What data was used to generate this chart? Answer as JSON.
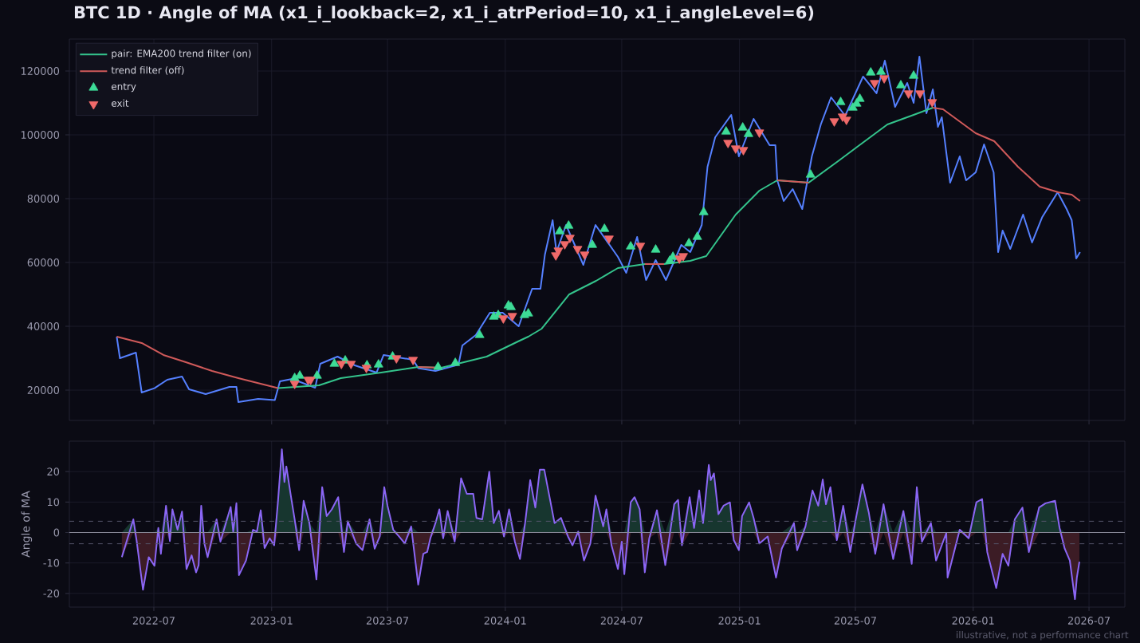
{
  "chart_data": [
    {
      "type": "line",
      "title": "BTC  1D    ·    Angle of MA  (x1_i_lookback=2, x1_i_atrPeriod=10, x1_i_angleLevel=6)",
      "xlim": [
        "2022-02-19",
        "2026-08-26"
      ],
      "ylim": [
        10500,
        130000
      ],
      "xticks": [
        "2022-07",
        "2023-01",
        "2023-07",
        "2024-01",
        "2024-07",
        "2025-01",
        "2025-07",
        "2026-01",
        "2026-07"
      ],
      "yticks": [
        20000,
        40000,
        60000,
        80000,
        100000,
        120000
      ],
      "tick_labels": "y",
      "grid": true,
      "legend": "top left",
      "x": [
        "2022-05-04",
        "2022-05-09",
        "2022-06-03",
        "2022-06-12",
        "2022-07-02",
        "2022-07-22",
        "2022-08-14",
        "2022-08-25",
        "2022-09-20",
        "2022-10-27",
        "2022-11-07",
        "2022-11-10",
        "2022-12-11",
        "2023-01-06",
        "2023-01-14",
        "2023-02-02",
        "2023-03-10",
        "2023-03-18",
        "2023-04-14",
        "2023-05-11",
        "2023-06-14",
        "2023-06-25",
        "2023-08-10",
        "2023-08-18",
        "2023-09-14",
        "2023-10-20",
        "2023-10-26",
        "2023-11-16",
        "2023-12-08",
        "2023-12-28",
        "2024-01-22",
        "2024-02-12",
        "2024-02-25",
        "2024-03-03",
        "2024-03-15",
        "2024-03-21",
        "2024-04-05",
        "2024-05-02",
        "2024-05-21",
        "2024-06-25",
        "2024-07-08",
        "2024-07-25",
        "2024-08-08",
        "2024-08-23",
        "2024-09-08",
        "2024-10-02",
        "2024-10-16",
        "2024-11-03",
        "2024-11-12",
        "2024-11-24",
        "2024-12-19",
        "2024-12-31",
        "2025-01-23",
        "2025-02-17",
        "2025-02-26",
        "2025-03-01",
        "2025-03-11",
        "2025-03-25",
        "2025-04-09",
        "2025-04-24",
        "2025-05-08",
        "2025-05-24",
        "2025-06-15",
        "2025-07-13",
        "2025-08-03",
        "2025-08-16",
        "2025-09-01",
        "2025-09-20",
        "2025-09-30",
        "2025-10-09",
        "2025-10-20",
        "2025-10-30",
        "2025-11-07",
        "2025-11-13",
        "2025-11-26",
        "2025-12-11",
        "2025-12-21",
        "2026-01-05",
        "2026-01-18",
        "2026-02-02",
        "2026-02-09",
        "2026-02-16",
        "2026-02-28",
        "2026-03-20",
        "2026-04-03",
        "2026-04-19",
        "2026-05-13",
        "2026-05-27",
        "2026-06-04",
        "2026-06-11",
        "2026-06-17"
      ],
      "series": [
        {
          "color": "#5580ff",
          "values": [
            36750,
            30000,
            31750,
            19250,
            20600,
            23250,
            24250,
            20250,
            18750,
            21000,
            21000,
            16250,
            17250,
            16900,
            22750,
            23500,
            20750,
            28250,
            30500,
            27750,
            25500,
            31000,
            29500,
            26900,
            26000,
            28000,
            34000,
            37250,
            44250,
            44250,
            40000,
            51750,
            51750,
            62500,
            73250,
            63250,
            71750,
            59250,
            71750,
            61750,
            56750,
            68000,
            54500,
            60750,
            54500,
            65500,
            63250,
            71750,
            90000,
            99250,
            106250,
            93250,
            105000,
            96750,
            96750,
            85750,
            79250,
            83000,
            76750,
            93250,
            103250,
            111750,
            106000,
            118250,
            113000,
            123250,
            108750,
            116250,
            110000,
            124500,
            106750,
            114250,
            102500,
            105500,
            85000,
            93250,
            85750,
            88250,
            97000,
            88250,
            63250,
            70000,
            64250,
            75000,
            66250,
            74250,
            82000,
            76750,
            73250,
            61250,
            63250
          ]
        },
        {
          "name": "pair: EMA200 trend filter (on)",
          "color": "#34c48c",
          "x": [
            "2023-01-11",
            "2023-03-16",
            "2023-04-19",
            "2023-06-21",
            "2023-08-18",
            "2023-09-23",
            "2023-12-03",
            "2024-01-21",
            "2024-02-06",
            "2024-02-27",
            "2024-04-10",
            "2024-05-22",
            "2024-06-25",
            "2024-08-06",
            "2024-09-05",
            "2024-10-16",
            "2024-11-10",
            "2024-12-26",
            "2025-02-01",
            "2025-03-01",
            "2025-04-19",
            "2025-06-04",
            "2025-07-04",
            "2025-08-20",
            "2025-09-30",
            "2025-10-30"
          ],
          "values": [
            20600,
            21500,
            23750,
            25500,
            27250,
            27000,
            30500,
            35250,
            36750,
            39250,
            50000,
            54250,
            58250,
            59500,
            59500,
            60500,
            62000,
            75000,
            82500,
            85750,
            85000,
            91750,
            96250,
            103250,
            106250,
            108500
          ]
        },
        {
          "name": "trend filter (off)",
          "color": "#d05a5a",
          "x": [
            "2022-05-04",
            "2022-06-12",
            "2022-07-16",
            "2022-08-20",
            "2022-09-30",
            "2022-11-10",
            "2023-01-11",
            "2023-03-16",
            "2023-08-18",
            "2023-09-23",
            "2023-12-03",
            "2024-08-06",
            "2024-09-05",
            "2024-10-16",
            "2025-03-01",
            "2025-04-19",
            "2025-06-04",
            "2025-10-30",
            "2025-11-15",
            "2026-01-05",
            "2026-02-03",
            "2026-03-12",
            "2026-04-15",
            "2026-05-14",
            "2026-06-04",
            "2026-06-17"
          ],
          "values": [
            36750,
            34750,
            31000,
            28750,
            26000,
            23750,
            20600,
            null,
            27250,
            27000,
            null,
            59500,
            59500,
            null,
            85750,
            85000,
            null,
            108500,
            108000,
            100500,
            98000,
            90000,
            83750,
            82000,
            81250,
            79250
          ]
        },
        {
          "type": "scatter",
          "name": "entry",
          "color": "#3ddc97",
          "marker": "triangle",
          "x": [
            "2023-02-06",
            "2023-02-14",
            "2023-03-13",
            "2023-04-09",
            "2023-04-26",
            "2023-05-30",
            "2023-06-17",
            "2023-07-09",
            "2023-09-18",
            "2023-10-15",
            "2023-11-22",
            "2023-12-14",
            "2023-12-21",
            "2024-01-06",
            "2024-01-10",
            "2024-01-31",
            "2024-02-06",
            "2024-03-26",
            "2024-04-09",
            "2024-05-16",
            "2024-06-04",
            "2024-07-15",
            "2024-08-23",
            "2024-09-14",
            "2024-09-19",
            "2024-10-14",
            "2024-10-27",
            "2024-11-06",
            "2024-12-11",
            "2025-01-06",
            "2025-01-15",
            "2025-04-22",
            "2025-06-08",
            "2025-06-27",
            "2025-07-03",
            "2025-07-08",
            "2025-07-25",
            "2025-08-10",
            "2025-09-10",
            "2025-09-30"
          ],
          "values": [
            23750,
            24500,
            24500,
            28250,
            29250,
            27750,
            28000,
            30500,
            27250,
            28500,
            37250,
            43000,
            43500,
            46500,
            46000,
            43500,
            44000,
            69750,
            71500,
            65500,
            70500,
            65000,
            64000,
            60500,
            61750,
            66000,
            68000,
            75750,
            101000,
            102250,
            100250,
            87500,
            110250,
            108500,
            109750,
            111250,
            119500,
            119750,
            115500,
            118500
          ]
        },
        {
          "type": "scatter",
          "name": "exit",
          "color": "#f06a6a",
          "marker": "triangle-down",
          "x": [
            "2023-02-06",
            "2023-02-27",
            "2023-03-03",
            "2023-04-20",
            "2023-05-05",
            "2023-05-29",
            "2023-07-15",
            "2023-08-10",
            "2023-12-29",
            "2024-01-12",
            "2024-03-20",
            "2024-03-24",
            "2024-04-03",
            "2024-04-11",
            "2024-04-23",
            "2024-05-04",
            "2024-06-11",
            "2024-07-30",
            "2024-09-29",
            "2024-10-05",
            "2024-12-14",
            "2024-12-26",
            "2025-01-07",
            "2025-02-01",
            "2025-05-29",
            "2025-06-11",
            "2025-06-17",
            "2025-07-31",
            "2025-08-15",
            "2025-09-22",
            "2025-10-10",
            "2025-10-29"
          ],
          "values": [
            22000,
            23250,
            23250,
            28250,
            28250,
            27000,
            30000,
            29500,
            42500,
            43250,
            62250,
            63750,
            65750,
            67750,
            64250,
            62500,
            67500,
            65250,
            61250,
            62000,
            97500,
            95750,
            95250,
            100750,
            104250,
            105750,
            104750,
            116250,
            117750,
            113000,
            113000,
            110250
          ]
        }
      ]
    },
    {
      "type": "line",
      "ylabel": "Angle of MA",
      "xlim": [
        "2022-02-19",
        "2026-08-26"
      ],
      "ylim": [
        -24.5,
        30
      ],
      "xticks": [
        "2022-07",
        "2023-01",
        "2023-07",
        "2024-01",
        "2024-07",
        "2025-01",
        "2025-07",
        "2026-01",
        "2026-07"
      ],
      "yticks": [
        -20,
        -10,
        0,
        10,
        20
      ],
      "grid": true,
      "ref_lines": [
        {
          "axis": "y",
          "value": 0,
          "color": "#8a8a9a",
          "line_style": "solid"
        },
        {
          "axis": "y",
          "value": 3.7,
          "color": "#55556a",
          "line_style": "dashed"
        },
        {
          "axis": "y",
          "value": -3.7,
          "color": "#55556a",
          "line_style": "dashed"
        }
      ],
      "annotations": [
        "illustrative, not a performance chart"
      ],
      "x": [
        "2022-05-12",
        "2022-05-30",
        "2022-06-04",
        "2022-06-14",
        "2022-06-23",
        "2022-07-02",
        "2022-07-08",
        "2022-07-12",
        "2022-07-20",
        "2022-07-26",
        "2022-07-30",
        "2022-08-07",
        "2022-08-14",
        "2022-08-21",
        "2022-08-29",
        "2022-09-05",
        "2022-09-09",
        "2022-09-13",
        "2022-09-18",
        "2022-09-23",
        "2022-10-07",
        "2022-10-13",
        "2022-10-29",
        "2022-11-02",
        "2022-11-07",
        "2022-11-11",
        "2022-11-22",
        "2022-12-03",
        "2022-12-09",
        "2022-12-15",
        "2022-12-21",
        "2022-12-29",
        "2023-01-05",
        "2023-01-11",
        "2023-01-17",
        "2023-01-21",
        "2023-01-24",
        "2023-01-31",
        "2023-02-06",
        "2023-02-13",
        "2023-02-20",
        "2023-03-01",
        "2023-03-12",
        "2023-03-21",
        "2023-03-28",
        "2023-04-05",
        "2023-04-15",
        "2023-04-24",
        "2023-04-30",
        "2023-05-13",
        "2023-05-23",
        "2023-06-03",
        "2023-06-11",
        "2023-06-19",
        "2023-06-26",
        "2023-07-01",
        "2023-07-10",
        "2023-07-19",
        "2023-07-28",
        "2023-08-07",
        "2023-08-18",
        "2023-08-26",
        "2023-09-01",
        "2023-09-06",
        "2023-09-14",
        "2023-09-20",
        "2023-09-26",
        "2023-10-03",
        "2023-10-14",
        "2023-10-24",
        "2023-11-02",
        "2023-11-12",
        "2023-11-17",
        "2023-11-26",
        "2023-12-07",
        "2023-12-14",
        "2023-12-22",
        "2023-12-30",
        "2024-01-07",
        "2024-01-16",
        "2024-01-24",
        "2024-02-01",
        "2024-02-09",
        "2024-02-17",
        "2024-02-24",
        "2024-03-02",
        "2024-03-18",
        "2024-03-28",
        "2024-04-08",
        "2024-04-15",
        "2024-04-24",
        "2024-05-03",
        "2024-05-13",
        "2024-05-21",
        "2024-06-02",
        "2024-06-07",
        "2024-06-15",
        "2024-06-25",
        "2024-07-01",
        "2024-07-05",
        "2024-07-15",
        "2024-07-21",
        "2024-07-29",
        "2024-08-06",
        "2024-08-13",
        "2024-08-25",
        "2024-09-07",
        "2024-09-21",
        "2024-09-27",
        "2024-10-03",
        "2024-10-15",
        "2024-10-22",
        "2024-10-30",
        "2024-11-05",
        "2024-11-14",
        "2024-11-17",
        "2024-11-22",
        "2024-11-29",
        "2024-12-07",
        "2024-12-17",
        "2024-12-23",
        "2024-12-31",
        "2025-01-05",
        "2025-01-16",
        "2025-01-23",
        "2025-02-01",
        "2025-02-14",
        "2025-02-27",
        "2025-03-08",
        "2025-03-27",
        "2025-04-01",
        "2025-04-14",
        "2025-04-25",
        "2025-05-04",
        "2025-05-11",
        "2025-05-16",
        "2025-05-23",
        "2025-06-02",
        "2025-06-12",
        "2025-06-23",
        "2025-07-01",
        "2025-07-12",
        "2025-07-22",
        "2025-08-01",
        "2025-08-14",
        "2025-08-29",
        "2025-09-14",
        "2025-09-27",
        "2025-10-05",
        "2025-10-13",
        "2025-10-27",
        "2025-11-04",
        "2025-11-20",
        "2025-11-22",
        "2025-12-11",
        "2025-12-25",
        "2026-01-06",
        "2026-01-15",
        "2026-01-23",
        "2026-02-06",
        "2026-02-16",
        "2026-02-25",
        "2026-03-07",
        "2026-03-19",
        "2026-03-29",
        "2026-04-14",
        "2026-04-24",
        "2026-05-09",
        "2026-05-16",
        "2026-05-24",
        "2026-06-01",
        "2026-06-09",
        "2026-06-12",
        "2026-06-16"
      ],
      "series": [
        {
          "type": "area",
          "color": "#17362f",
          "values": [
            0,
            4.3,
            0,
            0,
            0,
            0,
            1.5,
            0,
            8.8,
            0,
            7.6,
            0.9,
            6.9,
            0,
            0,
            0,
            0,
            8.8,
            0,
            0,
            4.3,
            0,
            8.4,
            0.3,
            9.6,
            0,
            0,
            0.9,
            0.3,
            7.3,
            0,
            0,
            0,
            10.4,
            27.3,
            16.6,
            21.7,
            12.1,
            4.3,
            0,
            10.4,
            3.1,
            0,
            14.9,
            5.4,
            7.6,
            11.6,
            0,
            3.7,
            0,
            0,
            4.3,
            0,
            0,
            14.9,
            8.8,
            0.9,
            0,
            0,
            2,
            0,
            0,
            0,
            0,
            3.1,
            7.6,
            0,
            7.1,
            0,
            17.8,
            12.7,
            12.7,
            4.8,
            4.3,
            20,
            3.1,
            7.1,
            0,
            7.6,
            0,
            0,
            3.1,
            17.2,
            8.2,
            20.6,
            20.6,
            3.1,
            4.8,
            0,
            0,
            0.3,
            0,
            0,
            12.1,
            2,
            7.6,
            0,
            0,
            0,
            0,
            9.9,
            11.6,
            7.6,
            0,
            0,
            7.3,
            0,
            9.3,
            10.7,
            0,
            11.6,
            1.5,
            13.8,
            3.1,
            22.2,
            17.2,
            19.4,
            6,
            8.8,
            9.9,
            0,
            0,
            5.4,
            9.9,
            4.8,
            0,
            0,
            0,
            0,
            3.1,
            0,
            2,
            13.8,
            8.8,
            17.4,
            9.3,
            14.9,
            0,
            8.8,
            0,
            3.7,
            15.8,
            6.5,
            0,
            9.3,
            0,
            7.1,
            0,
            14.9,
            0,
            3.1,
            0,
            0,
            0,
            0.9,
            0,
            9.9,
            11,
            0,
            0,
            0,
            0,
            4.3,
            8.2,
            0,
            8.2,
            9.6,
            10.4,
            1.5,
            0,
            0,
            0,
            0,
            0
          ]
        },
        {
          "type": "area",
          "color": "#3c1c25",
          "values": [
            -8.1,
            0,
            -2.5,
            -18.8,
            -8.1,
            -10.9,
            0,
            -7,
            0,
            -2.8,
            0,
            0,
            0,
            -12,
            -7.5,
            -13.1,
            -10.7,
            0,
            -3.6,
            -8.1,
            0,
            -3,
            0,
            0,
            0,
            -14,
            -9.2,
            0,
            0,
            0,
            -5.1,
            -1.9,
            -4.2,
            0,
            0,
            0,
            0,
            0,
            0,
            -5.8,
            0,
            0,
            -15.4,
            0,
            0,
            0,
            0,
            -6.4,
            0,
            -3.6,
            -5.8,
            0,
            -5.3,
            -1.3,
            0,
            0,
            0,
            -1.3,
            -3.6,
            0,
            -17.1,
            -7,
            -6.4,
            -1.9,
            0,
            0,
            -1.9,
            0,
            -3,
            0,
            0,
            0,
            0,
            0,
            0,
            0,
            0,
            -1.3,
            0,
            -3,
            -8.7,
            0,
            0,
            0,
            0,
            0,
            0,
            0,
            -1.3,
            -4.2,
            0,
            -9.2,
            -3.6,
            0,
            0,
            0,
            -4.2,
            -12,
            -3,
            -13.7,
            0,
            0,
            0,
            -13.1,
            -1.9,
            0,
            -10.7,
            0,
            0,
            -4.2,
            0,
            0,
            0,
            0,
            0,
            0,
            0,
            0,
            0,
            0,
            -2.5,
            -5.8,
            0,
            0,
            0,
            -3.6,
            -1.3,
            -14.8,
            -5.3,
            0,
            -5.8,
            0,
            0,
            0,
            0,
            0,
            0,
            -2.5,
            0,
            -6.4,
            0,
            0,
            0,
            -7,
            0,
            -8.7,
            0,
            -10.3,
            0,
            -3,
            0,
            -9.2,
            -0.2,
            -14.8,
            0,
            -1.9,
            0,
            0,
            -6.4,
            -18.2,
            -7,
            -10.9,
            0,
            0,
            -6.4,
            0,
            0,
            0,
            0,
            -5.3,
            -9.2,
            -21.9,
            -14.8,
            -9.6
          ]
        },
        {
          "color": "#8b66f5",
          "values": [
            -8.1,
            4.3,
            -2.5,
            -18.8,
            -8.1,
            -10.9,
            1.5,
            -7,
            8.8,
            -2.8,
            7.6,
            0.9,
            6.9,
            -12,
            -7.5,
            -13.1,
            -10.7,
            8.8,
            -3.6,
            -8.1,
            4.3,
            -3,
            8.4,
            0.3,
            9.6,
            -14,
            -9.2,
            0.9,
            0.3,
            7.3,
            -5.1,
            -1.9,
            -4.2,
            10.4,
            27.3,
            16.6,
            21.7,
            12.1,
            4.3,
            -5.8,
            10.4,
            3.1,
            -15.4,
            14.9,
            5.4,
            7.6,
            11.6,
            -6.4,
            3.7,
            -3.6,
            -5.8,
            4.3,
            -5.3,
            -1.3,
            14.9,
            8.8,
            0.9,
            -1.3,
            -3.6,
            2,
            -17.1,
            -7,
            -6.4,
            -1.9,
            3.1,
            7.6,
            -1.9,
            7.1,
            -3,
            17.8,
            12.7,
            12.7,
            4.8,
            4.3,
            20,
            3.1,
            7.1,
            -1.3,
            7.6,
            -3,
            -8.7,
            3.1,
            17.2,
            8.2,
            20.6,
            20.6,
            3.1,
            4.8,
            -1.3,
            -4.2,
            0.3,
            -9.2,
            -3.6,
            12.1,
            2,
            7.6,
            -4.2,
            -12,
            -3,
            -13.7,
            9.9,
            11.6,
            7.6,
            -13.1,
            -1.9,
            7.3,
            -10.7,
            9.3,
            10.7,
            -4.2,
            11.6,
            1.5,
            13.8,
            3.1,
            22.2,
            17.2,
            19.4,
            6,
            8.8,
            9.9,
            -2.5,
            -5.8,
            5.4,
            9.9,
            4.8,
            -3.6,
            -1.3,
            -14.8,
            -5.3,
            3.1,
            -5.8,
            2,
            13.8,
            8.8,
            17.4,
            9.3,
            14.9,
            -2.5,
            8.8,
            -6.4,
            3.7,
            15.8,
            6.5,
            -7,
            9.3,
            -8.7,
            7.1,
            -10.3,
            14.9,
            -3,
            3.1,
            -9.2,
            -0.2,
            -14.8,
            0.9,
            -1.9,
            9.9,
            11,
            -6.4,
            -18.2,
            -7,
            -10.9,
            4.3,
            8.2,
            -6.4,
            8.2,
            9.6,
            10.4,
            1.5,
            -5.3,
            -9.2,
            -21.9,
            -14.8,
            -9.6
          ]
        }
      ]
    }
  ]
}
